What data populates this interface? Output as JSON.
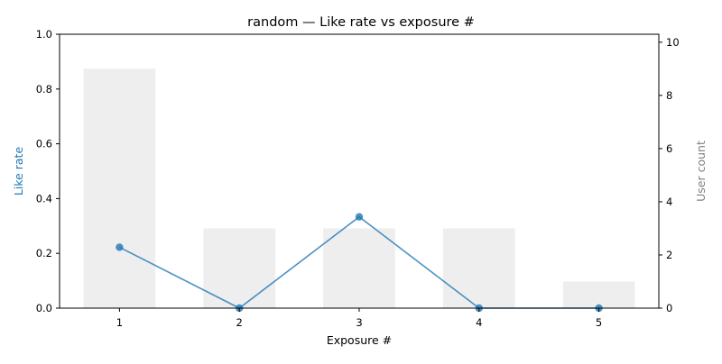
{
  "chart_data": {
    "type": "bar",
    "title": "random — Like rate vs exposure #",
    "xlabel": "Exposure #",
    "ylabel_left": "Like rate",
    "ylabel_right": "User count",
    "categories": [
      "1",
      "2",
      "3",
      "4",
      "5"
    ],
    "x": [
      1,
      2,
      3,
      4,
      5
    ],
    "series": [
      {
        "kind": "bar",
        "axis": "right",
        "values": [
          9,
          3,
          3,
          3,
          1
        ],
        "color": "#eeeeee"
      },
      {
        "kind": "line",
        "axis": "left",
        "values": [
          0.2222,
          0.0,
          0.3333,
          0.0,
          0.0
        ],
        "color": "#1f77b4"
      }
    ],
    "ylim_left": [
      0,
      1.0
    ],
    "ylim_right": [
      0,
      10.3
    ],
    "yticks_left": [
      "0.0",
      "0.2",
      "0.4",
      "0.6",
      "0.8",
      "1.0"
    ],
    "yticks_right": [
      "0",
      "2",
      "4",
      "6",
      "8",
      "10"
    ],
    "xlim": [
      0.5,
      5.5
    ],
    "grid": false,
    "colors": {
      "left_axis_label": "#1f77b4",
      "right_axis_label": "#808080",
      "line": "#1f77b4",
      "bars": "#eeeeee"
    }
  }
}
